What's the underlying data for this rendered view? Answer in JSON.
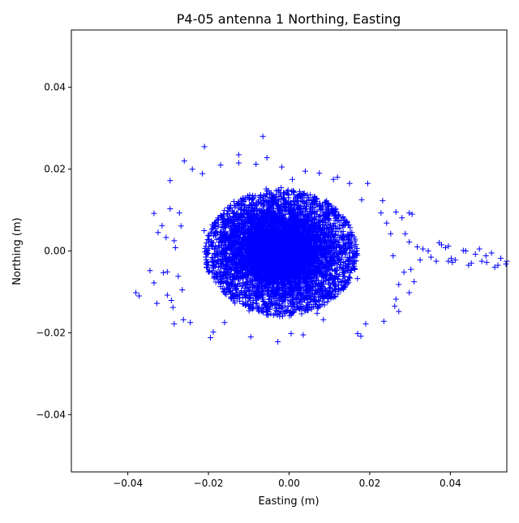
{
  "chart_data": {
    "type": "scatter",
    "title": "P4-05 antenna 1 Northing, Easting",
    "xlabel": "Easting (m)",
    "ylabel": "Northing (m)",
    "xlim": [
      -0.054,
      0.054
    ],
    "ylim": [
      -0.054,
      0.054
    ],
    "xticks": [
      -0.04,
      -0.02,
      0.0,
      0.02,
      0.04
    ],
    "yticks": [
      -0.04,
      -0.02,
      0.0,
      0.02,
      0.04
    ],
    "xtick_labels": [
      "−0.04",
      "−0.02",
      "0.00",
      "0.02",
      "0.04"
    ],
    "ytick_labels": [
      "−0.04",
      "−0.02",
      "0.00",
      "0.02",
      "0.04"
    ],
    "grid": false,
    "legend": "none",
    "marker": "+",
    "color": "#0000ff",
    "cluster": {
      "center": [
        -0.002,
        0.0
      ],
      "description_count_estimate": 20000,
      "dense_core_x_range": [
        -0.026,
        0.025
      ],
      "dense_core_y_range": [
        -0.018,
        0.019
      ]
    },
    "points": [
      [
        -0.0065,
        0.028
      ],
      [
        -0.021,
        0.0255
      ],
      [
        -0.0125,
        0.0235
      ],
      [
        -0.026,
        0.022
      ],
      [
        -0.0295,
        0.0172
      ],
      [
        -0.0055,
        0.0228
      ],
      [
        0.0195,
        0.0165
      ],
      [
        0.004,
        0.0195
      ],
      [
        -0.024,
        0.02
      ],
      [
        -0.017,
        0.021
      ],
      [
        0.012,
        0.018
      ],
      [
        0.018,
        0.0125
      ],
      [
        -0.0335,
        0.0092
      ],
      [
        -0.0315,
        0.0062
      ],
      [
        -0.0305,
        0.0033
      ],
      [
        -0.0325,
        0.0045
      ],
      [
        -0.0285,
        0.0025
      ],
      [
        -0.0295,
        0.0103
      ],
      [
        -0.0272,
        0.0093
      ],
      [
        0.0298,
        0.0093
      ],
      [
        0.0305,
        0.009
      ],
      [
        0.028,
        0.0081
      ],
      [
        0.0265,
        0.0095
      ],
      [
        0.0232,
        0.0123
      ],
      [
        -0.0345,
        -0.0048
      ],
      [
        -0.0312,
        -0.0053
      ],
      [
        -0.0302,
        -0.0051
      ],
      [
        -0.0335,
        -0.0078
      ],
      [
        -0.038,
        -0.0102
      ],
      [
        -0.0372,
        -0.011
      ],
      [
        -0.0328,
        -0.0128
      ],
      [
        -0.0302,
        -0.0108
      ],
      [
        -0.0292,
        -0.0121
      ],
      [
        -0.0288,
        -0.0138
      ],
      [
        -0.0285,
        -0.0178
      ],
      [
        -0.0262,
        -0.0168
      ],
      [
        -0.0245,
        -0.0175
      ],
      [
        -0.0195,
        -0.0212
      ],
      [
        -0.0188,
        -0.0198
      ],
      [
        -0.016,
        -0.0175
      ],
      [
        -0.0095,
        -0.021
      ],
      [
        -0.0028,
        -0.0222
      ],
      [
        0.0005,
        -0.0202
      ],
      [
        0.0035,
        -0.0205
      ],
      [
        0.0085,
        -0.0168
      ],
      [
        0.017,
        -0.0202
      ],
      [
        0.0178,
        -0.0208
      ],
      [
        0.019,
        -0.0178
      ],
      [
        0.0235,
        -0.0172
      ],
      [
        0.0272,
        -0.0148
      ],
      [
        0.0265,
        -0.0118
      ],
      [
        0.0298,
        -0.0102
      ],
      [
        0.0285,
        -0.0052
      ],
      [
        0.0302,
        -0.0045
      ],
      [
        0.031,
        -0.0075
      ],
      [
        0.0325,
        -0.0022
      ],
      [
        0.0318,
        0.001
      ],
      [
        0.0332,
        0.0005
      ],
      [
        0.0345,
        0.0
      ],
      [
        0.0352,
        -0.0015
      ],
      [
        0.0298,
        0.0022
      ],
      [
        0.0288,
        0.0042
      ],
      [
        0.0372,
        0.002
      ],
      [
        0.0378,
        0.0015
      ],
      [
        0.0388,
        0.0008
      ],
      [
        0.0395,
        0.0012
      ],
      [
        0.0402,
        -0.0018
      ],
      [
        0.0395,
        -0.0025
      ],
      [
        0.0405,
        -0.0028
      ],
      [
        0.0365,
        -0.0025
      ],
      [
        0.0412,
        -0.0022
      ],
      [
        0.0432,
        0.0001
      ],
      [
        0.0438,
        0.0
      ],
      [
        0.0445,
        -0.0035
      ],
      [
        0.0452,
        -0.003
      ],
      [
        0.0462,
        -0.0008
      ],
      [
        0.0472,
        0.0005
      ],
      [
        0.0478,
        -0.0025
      ],
      [
        0.0488,
        -0.0012
      ],
      [
        0.049,
        -0.0028
      ],
      [
        0.0502,
        -0.0005
      ],
      [
        0.051,
        -0.004
      ],
      [
        0.0518,
        -0.0035
      ],
      [
        0.0525,
        -0.0018
      ],
      [
        0.0538,
        -0.0032
      ],
      [
        0.054,
        -0.0025
      ],
      [
        0.0272,
        -0.0082
      ],
      [
        0.0262,
        -0.0135
      ],
      [
        -0.0125,
        0.0215
      ],
      [
        -0.0018,
        0.0205
      ],
      [
        0.0075,
        0.019
      ],
      [
        0.011,
        0.0175
      ],
      [
        -0.0082,
        0.0212
      ],
      [
        0.0008,
        0.0175
      ],
      [
        -0.0215,
        0.0189
      ],
      [
        0.015,
        0.0165
      ],
      [
        0.0228,
        0.0093
      ],
      [
        0.0242,
        0.0068
      ],
      [
        0.0252,
        0.0042
      ],
      [
        0.0258,
        -0.0012
      ],
      [
        -0.0265,
        -0.0095
      ],
      [
        -0.0275,
        -0.0062
      ],
      [
        -0.0282,
        0.0008
      ],
      [
        -0.0268,
        0.0061
      ]
    ]
  }
}
